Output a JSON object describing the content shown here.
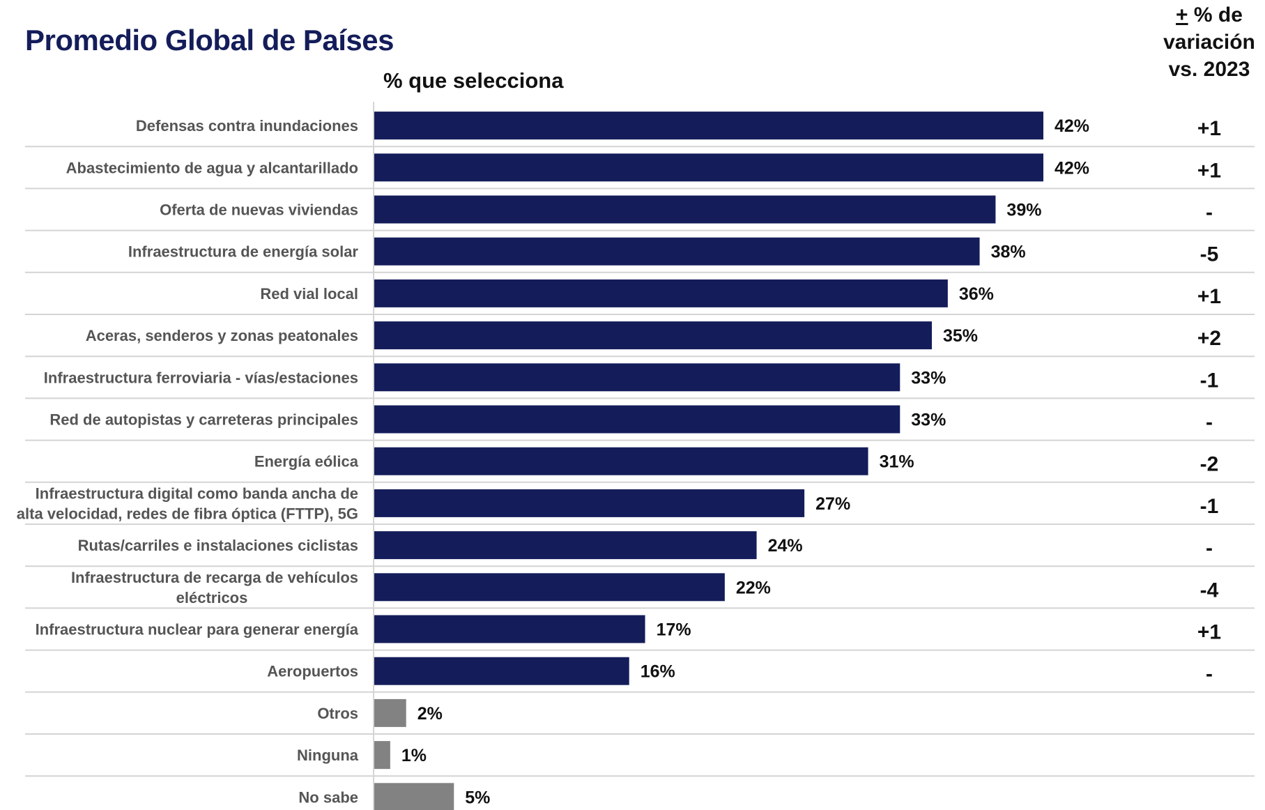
{
  "chart_data": {
    "type": "bar",
    "orientation": "horizontal",
    "title": "Promedio Global de Países",
    "subtitle": "% que selecciona",
    "variation_header": {
      "symbol": "+",
      "line1_rest": " % de",
      "line2": "variación",
      "line3": "vs. 2023"
    },
    "categories": [
      "Defensas contra inundaciones",
      "Abastecimiento de agua y alcantarillado",
      "Oferta de nuevas viviendas",
      "Infraestructura de energía solar",
      "Red vial local",
      "Aceras, senderos y zonas peatonales",
      "Infraestructura ferroviaria - vías/estaciones",
      "Red de autopistas y carreteras principales",
      "Energía eólica",
      "Infraestructura digital como banda ancha de alta velocidad, redes de fibra óptica (FTTP), 5G",
      "Rutas/carriles e instalaciones ciclistas",
      "Infraestructura de recarga de vehículos eléctricos",
      "Infraestructura nuclear para generar energía",
      "Aeropuertos",
      "Otros",
      "Ninguna",
      "No sabe"
    ],
    "category_lines": [
      [
        "Defensas contra inundaciones"
      ],
      [
        "Abastecimiento de agua y alcantarillado"
      ],
      [
        "Oferta de nuevas viviendas"
      ],
      [
        "Infraestructura de energía solar"
      ],
      [
        "Red vial local"
      ],
      [
        "Aceras, senderos y zonas peatonales"
      ],
      [
        "Infraestructura ferroviaria - vías/estaciones"
      ],
      [
        "Red de autopistas y carreteras principales"
      ],
      [
        "Energía eólica"
      ],
      [
        "Infraestructura digital como banda ancha de",
        "alta velocidad, redes de fibra óptica (FTTP), 5G"
      ],
      [
        "Rutas/carriles e instalaciones ciclistas"
      ],
      [
        "Infraestructura de recarga de vehículos",
        "eléctricos"
      ],
      [
        "Infraestructura nuclear para generar energía"
      ],
      [
        "Aeropuertos"
      ],
      [
        "Otros"
      ],
      [
        "Ninguna"
      ],
      [
        "No sabe"
      ]
    ],
    "values": [
      42,
      42,
      39,
      38,
      36,
      35,
      33,
      33,
      31,
      27,
      24,
      22,
      17,
      16,
      2,
      1,
      5
    ],
    "value_labels": [
      "42%",
      "42%",
      "39%",
      "38%",
      "36%",
      "35%",
      "33%",
      "33%",
      "31%",
      "27%",
      "24%",
      "22%",
      "17%",
      "16%",
      "2%",
      "1%",
      "5%"
    ],
    "variation": [
      "+1",
      "+1",
      "-",
      "-5",
      "+1",
      "+2",
      "-1",
      "-",
      "-2",
      "-1",
      "-",
      "-4",
      "+1",
      "-",
      "",
      "",
      ""
    ],
    "colors": {
      "primary": "#141d5a",
      "secondary": "#828282",
      "separator": "#d4d4d4",
      "axis": "#d4d4d4"
    },
    "secondary_categories": [
      "Otros",
      "Ninguna",
      "No sabe"
    ],
    "xlim": [
      0,
      42
    ],
    "grid": false,
    "legend": "none"
  }
}
